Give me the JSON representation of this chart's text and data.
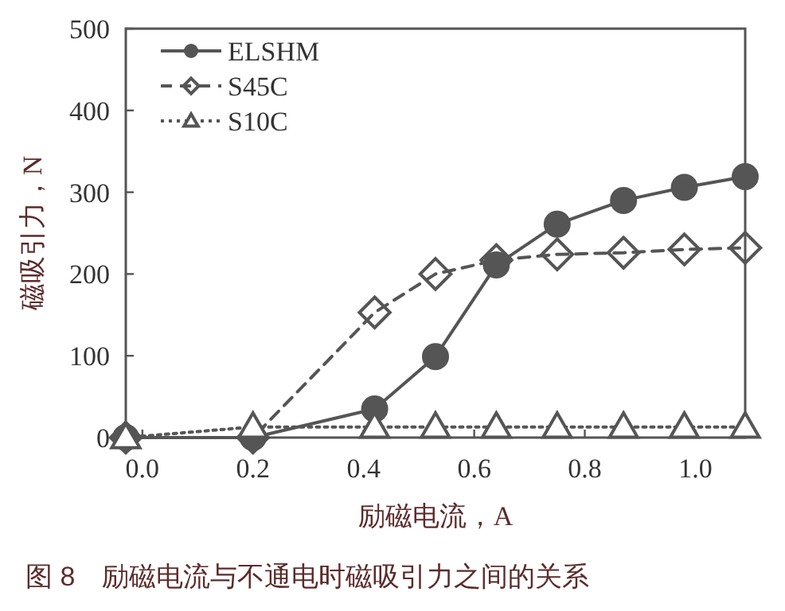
{
  "chart_data": {
    "type": "line",
    "xlabel": "励磁电流，A",
    "ylabel": "磁吸引力，N",
    "annotations": [
      "图 8　励磁电流与不通电时磁吸引力之间的关系"
    ],
    "x": [
      -0.03,
      0.2,
      0.42,
      0.53,
      0.64,
      0.75,
      0.87,
      0.98,
      1.09
    ],
    "xlim": [
      -0.03,
      1.09
    ],
    "xticks": [
      {
        "value": 0,
        "label": "0.0"
      },
      0.2,
      0.4,
      0.6,
      0.8,
      {
        "value": 1,
        "label": "1.0"
      }
    ],
    "ylim": [
      0,
      500
    ],
    "yticks": [
      0,
      100,
      200,
      300,
      400,
      500
    ],
    "legend": "top left",
    "grid": false,
    "series": [
      {
        "name": "ELSHM",
        "color": "#555555",
        "marker": "circle",
        "line_style": "solid",
        "values": [
          0,
          0,
          35,
          99,
          211,
          261,
          290,
          306,
          319
        ]
      },
      {
        "name": "S45C",
        "color": "#555555",
        "marker": "diamond",
        "line_style": "dashed",
        "values": [
          0,
          0,
          153,
          200,
          217,
          224,
          226,
          230,
          232
        ]
      },
      {
        "name": "S10C",
        "color": "#555555",
        "marker": "triangle",
        "line_style": "dotted",
        "values": [
          0,
          13,
          13,
          13,
          13,
          13,
          13,
          13,
          13
        ]
      }
    ]
  }
}
